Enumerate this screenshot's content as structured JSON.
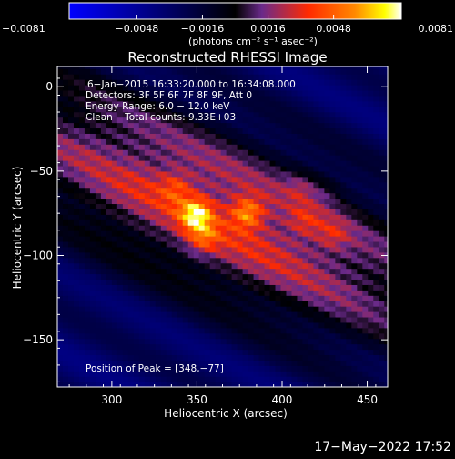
{
  "chart_data": {
    "type": "heatmap",
    "title": "Reconstructed RHESSI Image",
    "xlabel": "Heliocentric X (arcsec)",
    "ylabel": "Heliocentric Y (arcsec)",
    "xlim": [
      268,
      462
    ],
    "ylim": [
      -178,
      12
    ],
    "x_ticks": [
      300,
      350,
      400,
      450
    ],
    "x_tick_labels": [
      "300",
      "350",
      "400",
      "450"
    ],
    "y_ticks": [
      0,
      -50,
      -100,
      -150
    ],
    "y_tick_labels": [
      "0",
      "−50",
      "−100",
      "−150"
    ],
    "colorbar": {
      "min": -0.0081,
      "max": 0.0081,
      "ticks": [
        -0.0081,
        -0.0048,
        -0.0016,
        0.0016,
        0.0048,
        0.0081
      ],
      "tick_labels": [
        "−0.0081",
        "−0.0048",
        "−0.0016",
        "0.0016",
        "0.0048",
        "0.0081"
      ],
      "unit": "(photons cm⁻² s⁻¹ asec⁻²)",
      "colors": [
        "#0000ff",
        "#000000",
        "#6a2a8a",
        "#ff2a00",
        "#ff8800",
        "#ffff00",
        "#ffffff"
      ]
    },
    "annotations": {
      "line1": "6−Jan−2015 16:33:20.000 to 16:34:08.000",
      "line2": "Detectors: 3F 5F 6F 7F 8F 9F, Att 0",
      "line3": "Energy Range: 6.0 − 12.0 keV",
      "line4": "Clean    Total counts: 9.33E+03",
      "peak": "Position of Peak = [348,−77]"
    },
    "peak_position": [
      348,
      -77
    ],
    "sources": [
      {
        "x": 348,
        "y": -77,
        "peak": 0.0081
      },
      {
        "x": 378,
        "y": -76,
        "peak": 0.0072
      },
      {
        "x": 336,
        "y": -61,
        "peak": 0.0052
      },
      {
        "x": 352,
        "y": -91,
        "peak": 0.0056
      },
      {
        "x": 410,
        "y": -60,
        "peak": 0.0046
      },
      {
        "x": 424,
        "y": -62,
        "peak": 0.004
      },
      {
        "x": 412,
        "y": -81,
        "peak": 0.0048
      },
      {
        "x": 428,
        "y": -89,
        "peak": 0.0048
      },
      {
        "x": 300,
        "y": -48,
        "peak": 0.003
      }
    ]
  },
  "footer": {
    "date": "17−May−2022 17:52"
  }
}
